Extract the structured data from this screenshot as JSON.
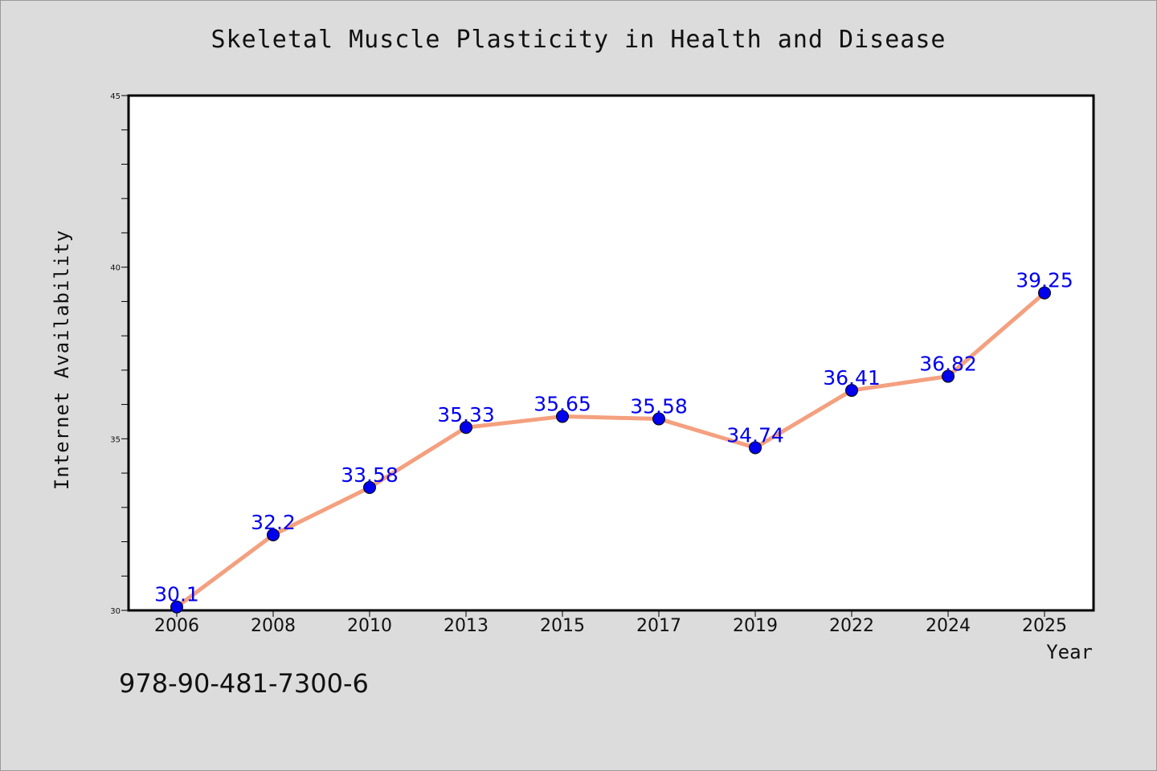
{
  "chart_data": {
    "type": "line",
    "title": "Skeletal Muscle Plasticity in Health and Disease",
    "xlabel": "Year",
    "ylabel": "Internet Availability",
    "categories": [
      "2006",
      "2008",
      "2010",
      "2013",
      "2015",
      "2017",
      "2019",
      "2022",
      "2024",
      "2025"
    ],
    "series": [
      {
        "values": [
          30.1,
          32.2,
          33.58,
          35.33,
          35.65,
          35.58,
          34.74,
          36.41,
          36.82,
          39.25
        ],
        "labels": [
          "30.1",
          "32.2",
          "33.58",
          "35.33",
          "35.65",
          "35.58",
          "34.74",
          "36.41",
          "36.82",
          "39.25"
        ],
        "line_color": "#f4a07f",
        "marker_color": "#0000ee",
        "label_color": "#0000ee"
      }
    ],
    "ylim": [
      30,
      45
    ],
    "yticks": [
      "30",
      "35",
      "40",
      "45"
    ],
    "grid": false,
    "legend": "none"
  },
  "caption": "978-90-481-7300-6",
  "colors": {
    "background": "#dcdcdc",
    "plot_background": "#ffffff",
    "axis": "#000000"
  }
}
